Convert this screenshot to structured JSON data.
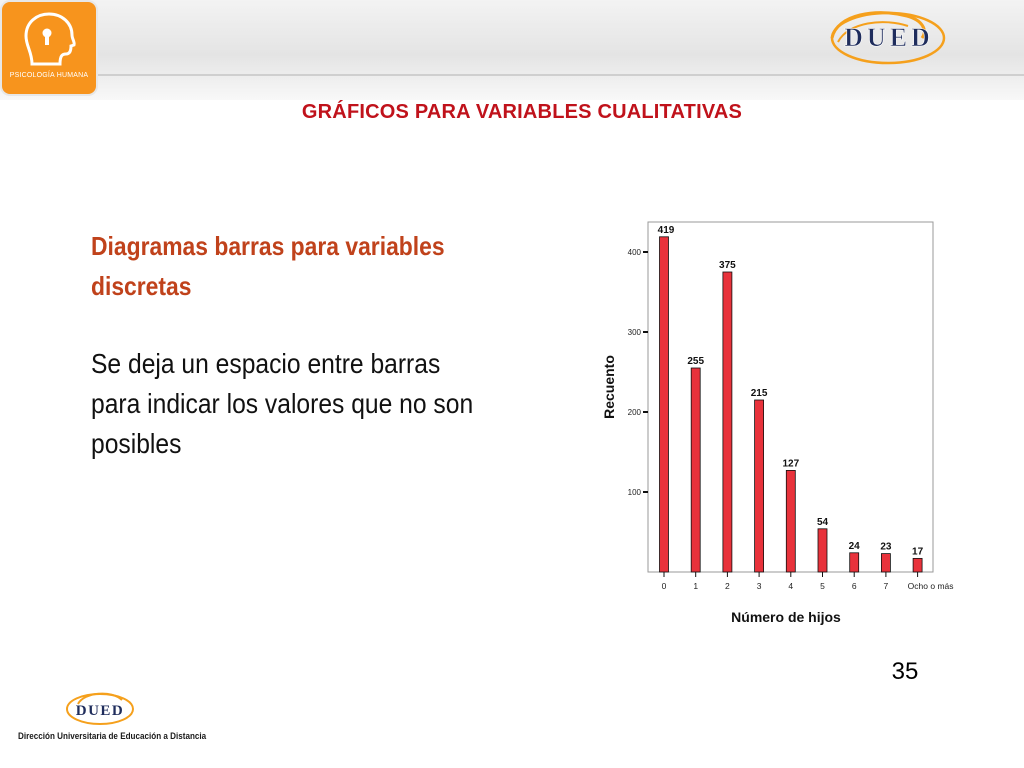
{
  "header": {
    "logo_left_label": "PSICOLOGÍA HUMANA",
    "logo_right_label": "DUED"
  },
  "slide": {
    "title": "GRÁFICOS PARA VARIABLES CUALITATIVAS",
    "heading_line1": "Diagramas barras para variables",
    "heading_line2": "discretas",
    "body_line1": "Se deja un espacio entre barras",
    "body_line2": "para indicar los valores que no son",
    "body_line3": "posibles",
    "page_number": "35"
  },
  "footer": {
    "logo_label": "DUED",
    "org_name": "Dirección Universitaria de Educación a Distancia"
  },
  "colors": {
    "bar_fill": "#e8323b",
    "title_red": "#c0121b",
    "heading_orange_red": "#c0421b",
    "logo_orange": "#f7941d",
    "dued_navy": "#1f2d5c"
  },
  "chart_data": {
    "type": "bar",
    "title": "",
    "xlabel": "Número de hijos",
    "ylabel": "Recuento",
    "categories": [
      "0",
      "1",
      "2",
      "3",
      "4",
      "5",
      "6",
      "7",
      "Ocho o más"
    ],
    "values": [
      419,
      255,
      375,
      215,
      127,
      54,
      24,
      23,
      17
    ],
    "data_labels": [
      "419",
      "255",
      "375",
      "215",
      "127",
      "54",
      "24",
      "23",
      "17"
    ],
    "y_ticks": [
      100,
      200,
      300,
      400
    ],
    "ylim": [
      0,
      430
    ],
    "grid": false,
    "legend": "none"
  }
}
